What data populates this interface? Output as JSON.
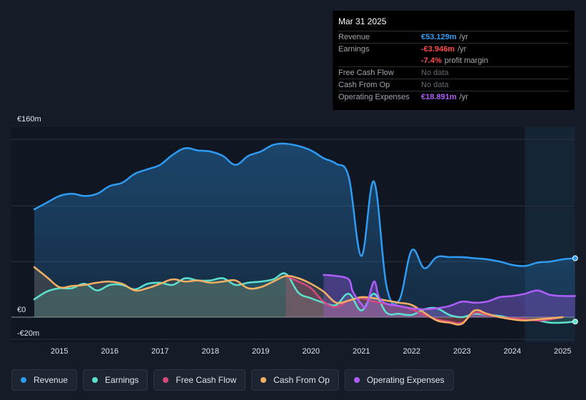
{
  "tooltip": {
    "date": "Mar 31 2025",
    "rows": [
      {
        "label": "Revenue",
        "value": "€53.129m",
        "unit": "/yr"
      },
      {
        "label": "Earnings",
        "value": "-€3.946m",
        "unit": "/yr"
      },
      {
        "label": "",
        "value": "-7.4%",
        "unit": "profit margin"
      },
      {
        "label": "Free Cash Flow",
        "value": "No data",
        "unit": ""
      },
      {
        "label": "Cash From Op",
        "value": "No data",
        "unit": ""
      },
      {
        "label": "Operating Expenses",
        "value": "€18.891m",
        "unit": "/yr"
      }
    ]
  },
  "legend": [
    {
      "label": "Revenue",
      "color": "#2f9cf4"
    },
    {
      "label": "Earnings",
      "color": "#5ce1cf"
    },
    {
      "label": "Free Cash Flow",
      "color": "#d6487e"
    },
    {
      "label": "Cash From Op",
      "color": "#f5b062"
    },
    {
      "label": "Operating Expenses",
      "color": "#b15dfc"
    }
  ],
  "chart_data": {
    "type": "area",
    "y_tick_labels": [
      "€160m",
      "€0",
      "-€20m"
    ],
    "y_ticks": [
      160,
      0,
      -20
    ],
    "ylim": [
      -20,
      160
    ],
    "xlim": [
      2014.5,
      2025.25
    ],
    "x_tick_labels": [
      "2015",
      "2016",
      "2017",
      "2018",
      "2019",
      "2020",
      "2021",
      "2022",
      "2023",
      "2024",
      "2025"
    ],
    "forecast_start": 2024.25,
    "series": [
      {
        "name": "Revenue",
        "color": "#2f9cf4",
        "x": [
          2014.5,
          2014.75,
          2015.0,
          2015.25,
          2015.5,
          2015.75,
          2016.0,
          2016.25,
          2016.5,
          2016.75,
          2017.0,
          2017.25,
          2017.5,
          2017.75,
          2018.0,
          2018.25,
          2018.5,
          2018.75,
          2019.0,
          2019.25,
          2019.5,
          2019.75,
          2020.0,
          2020.25,
          2020.5,
          2020.75,
          2021.0,
          2021.25,
          2021.5,
          2021.75,
          2022.0,
          2022.25,
          2022.5,
          2022.75,
          2023.0,
          2023.25,
          2023.5,
          2023.75,
          2024.0,
          2024.25,
          2024.5,
          2024.75,
          2025.0,
          2025.25
        ],
        "values": [
          97,
          103,
          109,
          111,
          109,
          111,
          118,
          121,
          129,
          133,
          137,
          146,
          152,
          150,
          149,
          145,
          137,
          145,
          149,
          155,
          156,
          154,
          150,
          143,
          138,
          126,
          55,
          122,
          28,
          15,
          60,
          44,
          54,
          54,
          54,
          53,
          52,
          50,
          47,
          46,
          49,
          50,
          52,
          53
        ]
      },
      {
        "name": "Earnings",
        "color": "#5ce1cf",
        "x": [
          2014.5,
          2014.75,
          2015.0,
          2015.25,
          2015.5,
          2015.75,
          2016.0,
          2016.25,
          2016.5,
          2016.75,
          2017.0,
          2017.25,
          2017.5,
          2017.75,
          2018.0,
          2018.25,
          2018.5,
          2018.75,
          2019.0,
          2019.25,
          2019.5,
          2019.75,
          2020.0,
          2020.25,
          2020.5,
          2020.75,
          2021.0,
          2021.25,
          2021.5,
          2021.75,
          2022.0,
          2022.25,
          2022.5,
          2022.75,
          2023.0,
          2023.25,
          2023.5,
          2023.75,
          2024.0,
          2024.25,
          2024.5,
          2024.75,
          2025.0,
          2025.25
        ],
        "values": [
          16,
          23,
          26,
          26,
          30,
          24,
          29,
          29,
          25,
          30,
          31,
          29,
          35,
          33,
          33,
          35,
          29,
          31,
          32,
          34,
          39,
          22,
          17,
          13,
          11,
          21,
          6,
          21,
          4,
          3,
          2,
          7,
          8,
          2,
          0,
          3,
          2,
          1,
          -1,
          -2,
          -3,
          -5,
          -5,
          -4
        ]
      },
      {
        "name": "Free Cash Flow",
        "color": "#d6487e",
        "x": [
          2019.5,
          2019.75,
          2020.0,
          2020.25,
          2020.5,
          2020.75,
          2021.0,
          2021.25,
          2021.5,
          2021.75,
          2022.0,
          2022.25,
          2022.5,
          2022.75,
          2023.0,
          2023.25,
          2023.5,
          2023.75,
          2024.0,
          2024.25,
          2024.5,
          2024.75,
          2025.0
        ],
        "values": [
          37,
          32,
          26,
          14,
          9,
          15,
          17,
          14,
          12,
          10,
          7,
          2,
          -2,
          -4,
          -5,
          4,
          2,
          0,
          -1,
          -2,
          -3,
          -2,
          0
        ]
      },
      {
        "name": "Cash From Op",
        "color": "#f5b062",
        "x": [
          2014.5,
          2014.75,
          2015.0,
          2015.25,
          2015.5,
          2015.75,
          2016.0,
          2016.25,
          2016.5,
          2016.75,
          2017.0,
          2017.25,
          2017.5,
          2017.75,
          2018.0,
          2018.25,
          2018.5,
          2018.75,
          2019.0,
          2019.25,
          2019.5,
          2019.75,
          2020.0,
          2020.25,
          2020.5,
          2020.75,
          2021.0,
          2021.25,
          2021.5,
          2021.75,
          2022.0,
          2022.25,
          2022.5,
          2022.75,
          2023.0,
          2023.25,
          2023.5,
          2023.75,
          2024.0,
          2024.25,
          2024.5,
          2024.75,
          2025.0
        ],
        "values": [
          45,
          36,
          27,
          28,
          29,
          31,
          32,
          30,
          24,
          26,
          30,
          34,
          32,
          33,
          31,
          32,
          33,
          26,
          27,
          32,
          37,
          35,
          30,
          23,
          13,
          15,
          18,
          17,
          15,
          13,
          11,
          4,
          -3,
          -5,
          -6,
          6,
          3,
          0,
          -2,
          -3,
          -2,
          -1,
          0
        ]
      },
      {
        "name": "Operating Expenses",
        "color": "#b15dfc",
        "x": [
          2020.25,
          2020.5,
          2020.75,
          2020.83,
          2021.0,
          2021.1,
          2021.25,
          2021.35,
          2021.5,
          2021.75,
          2022.0,
          2022.25,
          2022.5,
          2022.75,
          2023.0,
          2023.25,
          2023.5,
          2023.75,
          2024.0,
          2024.25,
          2024.5,
          2024.75,
          2025.0,
          2025.25
        ],
        "values": [
          38,
          37,
          34,
          23,
          12,
          10,
          32,
          18,
          12,
          10,
          8,
          7,
          8,
          10,
          14,
          13,
          14,
          18,
          19,
          21,
          24,
          20,
          19,
          19
        ]
      }
    ]
  }
}
